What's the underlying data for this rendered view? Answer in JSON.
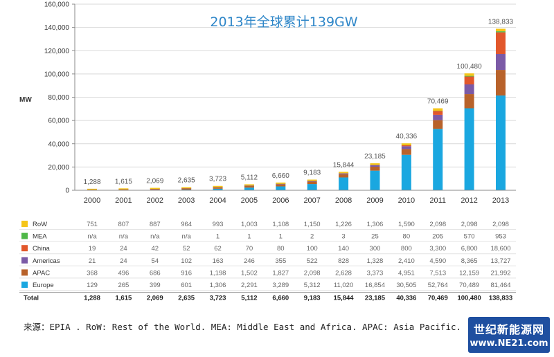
{
  "title": "2013年全球累计139GW",
  "unit_label": "MW",
  "chart_data": {
    "type": "bar",
    "stacked": true,
    "title": "2013年全球累计139GW",
    "ylabel": "MW",
    "ylim": [
      0,
      160000
    ],
    "yticks": [
      0,
      20000,
      40000,
      60000,
      80000,
      100000,
      120000,
      140000,
      160000
    ],
    "ytick_labels": [
      "0",
      "20,000",
      "40,000",
      "60,000",
      "80,000",
      "100,000",
      "120,000",
      "140,000",
      "160,000"
    ],
    "categories": [
      "2000",
      "2001",
      "2002",
      "2003",
      "2004",
      "2005",
      "2006",
      "2007",
      "2008",
      "2009",
      "2010",
      "2011",
      "2012",
      "2013"
    ],
    "series": [
      {
        "name": "Europe",
        "color": "#1aa7e0",
        "values": [
          129,
          265,
          399,
          601,
          1306,
          2291,
          3289,
          5312,
          11020,
          16854,
          30505,
          52764,
          70489,
          81464
        ]
      },
      {
        "name": "APAC",
        "color": "#b8622a",
        "values": [
          368,
          496,
          686,
          916,
          1198,
          1502,
          1827,
          2098,
          2628,
          3373,
          4951,
          7513,
          12159,
          21992
        ]
      },
      {
        "name": "Americas",
        "color": "#7b5aa6",
        "values": [
          21,
          24,
          54,
          102,
          163,
          246,
          355,
          522,
          828,
          1328,
          2410,
          4590,
          8365,
          13727
        ]
      },
      {
        "name": "China",
        "color": "#e2572b",
        "values": [
          19,
          24,
          42,
          52,
          62,
          70,
          80,
          100,
          140,
          300,
          800,
          3300,
          6800,
          18600
        ]
      },
      {
        "name": "MEA",
        "color": "#4fb848",
        "values": [
          null,
          null,
          null,
          null,
          1,
          1,
          1,
          2,
          3,
          25,
          80,
          205,
          570,
          953
        ]
      },
      {
        "name": "RoW",
        "color": "#f5c518",
        "values": [
          751,
          807,
          887,
          964,
          993,
          1003,
          1108,
          1150,
          1226,
          1306,
          1590,
          2098,
          2098,
          2098
        ]
      }
    ],
    "totals": [
      1288,
      1615,
      2069,
      2635,
      3723,
      5112,
      6660,
      9183,
      15844,
      23185,
      40336,
      70469,
      100480,
      138833
    ],
    "total_labels": [
      "1,288",
      "1,615",
      "2,069",
      "2,635",
      "3,723",
      "5,112",
      "6,660",
      "9,183",
      "15,844",
      "23,185",
      "40,336",
      "70,469",
      "100,480",
      "138,833"
    ],
    "legend": "table-below"
  },
  "table": {
    "rows": [
      {
        "label": "RoW",
        "values": [
          "751",
          "807",
          "887",
          "964",
          "993",
          "1,003",
          "1,108",
          "1,150",
          "1,226",
          "1,306",
          "1,590",
          "2,098",
          "2,098",
          "2,098"
        ]
      },
      {
        "label": "MEA",
        "values": [
          "n/a",
          "n/a",
          "n/a",
          "n/a",
          "1",
          "1",
          "1",
          "2",
          "3",
          "25",
          "80",
          "205",
          "570",
          "953"
        ]
      },
      {
        "label": "China",
        "values": [
          "19",
          "24",
          "42",
          "52",
          "62",
          "70",
          "80",
          "100",
          "140",
          "300",
          "800",
          "3,300",
          "6,800",
          "18,600"
        ]
      },
      {
        "label": "Americas",
        "values": [
          "21",
          "24",
          "54",
          "102",
          "163",
          "246",
          "355",
          "522",
          "828",
          "1,328",
          "2,410",
          "4,590",
          "8,365",
          "13,727"
        ]
      },
      {
        "label": "APAC",
        "values": [
          "368",
          "496",
          "686",
          "916",
          "1,198",
          "1,502",
          "1,827",
          "2,098",
          "2,628",
          "3,373",
          "4,951",
          "7,513",
          "12,159",
          "21,992"
        ]
      },
      {
        "label": "Europe",
        "values": [
          "129",
          "265",
          "399",
          "601",
          "1,306",
          "2,291",
          "3,289",
          "5,312",
          "11,020",
          "16,854",
          "30,505",
          "52,764",
          "70,489",
          "81,464"
        ]
      }
    ],
    "total_row_label": "Total"
  },
  "footnote": "来源：EPIA .  RoW: Rest of the World. MEA: Middle East and Africa. APAC: Asia Pacific.",
  "watermark": {
    "line1": "世纪新能源网",
    "line2": "www.NE21.com"
  }
}
